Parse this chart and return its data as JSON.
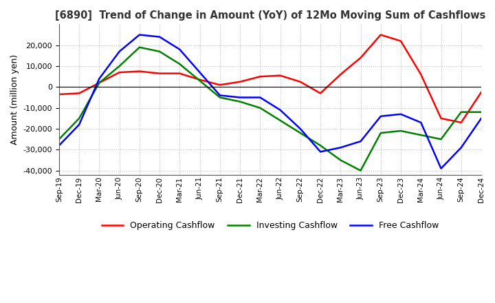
{
  "title": "[6890]  Trend of Change in Amount (YoY) of 12Mo Moving Sum of Cashflows",
  "ylabel": "Amount (million yen)",
  "ylim": [
    -42000,
    30000
  ],
  "yticks": [
    -40000,
    -30000,
    -20000,
    -10000,
    0,
    10000,
    20000
  ],
  "x_labels": [
    "Sep-19",
    "Dec-19",
    "Mar-20",
    "Jun-20",
    "Sep-20",
    "Dec-20",
    "Mar-21",
    "Jun-21",
    "Sep-21",
    "Dec-21",
    "Mar-22",
    "Jun-22",
    "Sep-22",
    "Dec-22",
    "Mar-23",
    "Jun-23",
    "Sep-23",
    "Dec-23",
    "Mar-24",
    "Jun-24",
    "Sep-24",
    "Dec-24"
  ],
  "operating": [
    -3500,
    -3000,
    2000,
    7000,
    7500,
    6500,
    6500,
    3500,
    1000,
    2500,
    5000,
    5500,
    2500,
    -3000,
    6000,
    14000,
    25000,
    22000,
    6000,
    -15000,
    -17000,
    -2500
  ],
  "investing": [
    -25000,
    -15000,
    2000,
    10000,
    19000,
    17000,
    11000,
    3000,
    -5000,
    -7000,
    -10000,
    -16000,
    -22000,
    -28000,
    -35000,
    -40000,
    -22000,
    -21000,
    -23000,
    -25000,
    -12000,
    -12000
  ],
  "free": [
    -28000,
    -18000,
    4000,
    17000,
    25000,
    24000,
    18000,
    7000,
    -4000,
    -5000,
    -5000,
    -11000,
    -20000,
    -31000,
    -29000,
    -26000,
    -14000,
    -13000,
    -17000,
    -39000,
    -29000,
    -15000
  ],
  "colors": {
    "operating": "#ff0000",
    "investing": "#008000",
    "free": "#0000ff"
  },
  "legend_labels": [
    "Operating Cashflow",
    "Investing Cashflow",
    "Free Cashflow"
  ],
  "background_color": "#ffffff",
  "grid_color": "#bbbbbb"
}
